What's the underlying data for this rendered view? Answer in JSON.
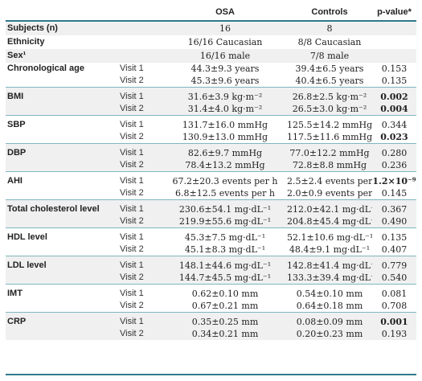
{
  "header": {
    "col_label": "",
    "col_visit": "",
    "col_osa": "OSA",
    "col_controls": "Controls",
    "col_pvalue": "p-value*"
  },
  "rows": {
    "subjects": {
      "label": "Subjects (n)",
      "osa": "16",
      "controls": "8"
    },
    "ethnicity": {
      "label": "Ethnicity",
      "osa": "16/16 Caucasian",
      "controls": "8/8 Caucasian"
    },
    "sex": {
      "label": "Sex¹",
      "osa": "16/16 male",
      "controls": "7/8 male"
    },
    "age": {
      "label": "Chronological age",
      "v1": {
        "visit": "Visit 1",
        "osa": "44.3±9.3 years",
        "controls": "39.4±6.5 years",
        "p": "0.153"
      },
      "v2": {
        "visit": "Visit 2",
        "osa": "45.3±9.6 years",
        "controls": "40.4±6.5 years",
        "p": "0.135"
      }
    },
    "bmi": {
      "label": "BMI",
      "v1": {
        "visit": "Visit 1",
        "osa": "31.6±3.9 kg·m⁻²",
        "controls": "26.8±2.5 kg·m⁻²",
        "p": "0.002"
      },
      "v2": {
        "visit": "Visit 2",
        "osa": "31.4±4.0 kg·m⁻²",
        "controls": "26.5±3.0 kg·m⁻²",
        "p": "0.004"
      }
    },
    "sbp": {
      "label": "SBP",
      "v1": {
        "visit": "Visit 1",
        "osa": "131.7±16.0 mmHg",
        "controls": "125.5±14.2 mmHg",
        "p": "0.344"
      },
      "v2": {
        "visit": "Visit 2",
        "osa": "130.9±13.0 mmHg",
        "controls": "117.5±11.6 mmHg",
        "p": "0.023"
      }
    },
    "dbp": {
      "label": "DBP",
      "v1": {
        "visit": "Visit 1",
        "osa": "82.6±9.7 mmHg",
        "controls": "77.0±12.2 mmHg",
        "p": "0.280"
      },
      "v2": {
        "visit": "Visit 2",
        "osa": "78.4±13.2 mmHg",
        "controls": "72.8±8.8 mmHg",
        "p": "0.236"
      }
    },
    "ahi": {
      "label": "AHI",
      "v1": {
        "visit": "Visit 1",
        "osa": "67.2±20.3 events per h",
        "controls": "2.5±2.4 events per h",
        "p": "1.2×10⁻⁹"
      },
      "v2": {
        "visit": "Visit 2",
        "osa": "6.8±12.5 events per h",
        "controls": "2.0±0.9 events per h",
        "p": "0.145"
      }
    },
    "chol": {
      "label": "Total cholesterol level",
      "v1": {
        "visit": "Visit 1",
        "osa": "230.6±54.1 mg·dL⁻¹",
        "controls": "212.0±42.1 mg·dL⁻¹",
        "p": "0.367"
      },
      "v2": {
        "visit": "Visit 2",
        "osa": "219.9±55.6 mg·dL⁻¹",
        "controls": "204.8±45.4 mg·dL⁻¹",
        "p": "0.490"
      }
    },
    "hdl": {
      "label": "HDL level",
      "v1": {
        "visit": "Visit 1",
        "osa": "45.3±7.5 mg·dL⁻¹",
        "controls": "52.1±10.6 mg·dL⁻¹",
        "p": "0.135"
      },
      "v2": {
        "visit": "Visit 2",
        "osa": "45.1±8.3 mg·dL⁻¹",
        "controls": "48.4±9.1 mg·dL⁻¹",
        "p": "0.407"
      }
    },
    "ldl": {
      "label": "LDL level",
      "v1": {
        "visit": "Visit 1",
        "osa": "148.1±44.6 mg·dL⁻¹",
        "controls": "142.8±41.4 mg·dL⁻¹",
        "p": "0.779"
      },
      "v2": {
        "visit": "Visit 2",
        "osa": "144.7±45.5 mg·dL⁻¹",
        "controls": "133.3±39.4 mg·dL⁻¹",
        "p": "0.540"
      }
    },
    "imt": {
      "label": "IMT",
      "v1": {
        "visit": "Visit 1",
        "osa": "0.62±0.10 mm",
        "controls": "0.54±0.10 mm",
        "p": "0.081"
      },
      "v2": {
        "visit": "Visit 2",
        "osa": "0.67±0.21 mm",
        "controls": "0.64±0.18 mm",
        "p": "0.708"
      }
    },
    "crp": {
      "label": "CRP",
      "v1": {
        "visit": "Visit 1",
        "osa": "0.35±0.25 mm",
        "controls": "0.08±0.09 mm",
        "p": "0.001"
      },
      "v2": {
        "visit": "Visit 2",
        "osa": "0.34±0.21 mm",
        "controls": "0.20±0.23 mm",
        "p": "0.193"
      }
    }
  },
  "colors": {
    "rule": "#2d7a8a",
    "shade": "#f0f0f0",
    "separator": "#7fb6c0"
  }
}
